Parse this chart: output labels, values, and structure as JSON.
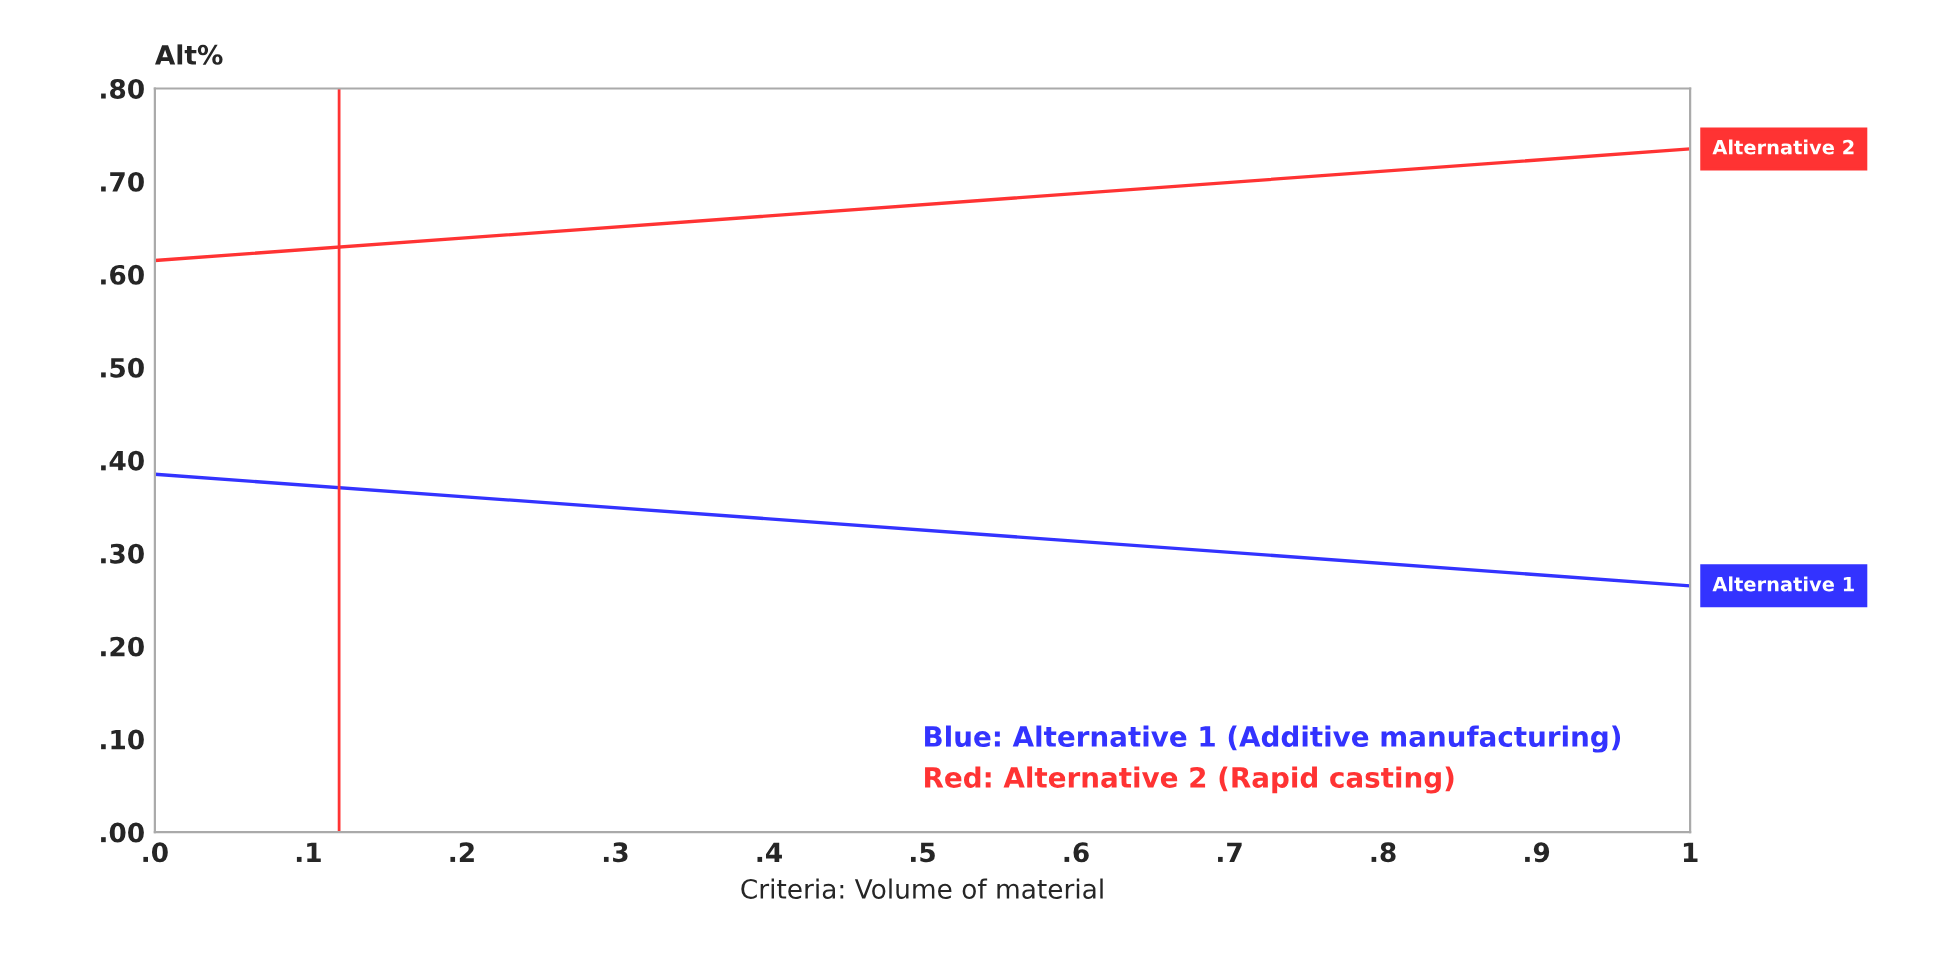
{
  "chart_data": {
    "type": "line",
    "xlabel": "Criteria: Volume of material",
    "ylabel": "Alt%",
    "x": [
      0,
      1
    ],
    "series": [
      {
        "name": "Alternative 1",
        "color": "#3333ff",
        "values": [
          0.385,
          0.265
        ]
      },
      {
        "name": "Alternative 2",
        "color": "#ff3333",
        "values": [
          0.615,
          0.735
        ]
      }
    ],
    "xlim": [
      0,
      1
    ],
    "xticks": [
      {
        "value": 0,
        "label": ".0"
      },
      {
        "value": 0.1,
        "label": ".1"
      },
      {
        "value": 0.2,
        "label": ".2"
      },
      {
        "value": 0.3,
        "label": ".3"
      },
      {
        "value": 0.4,
        "label": ".4"
      },
      {
        "value": 0.5,
        "label": ".5"
      },
      {
        "value": 0.6,
        "label": ".6"
      },
      {
        "value": 0.7,
        "label": ".7"
      },
      {
        "value": 0.8,
        "label": ".8"
      },
      {
        "value": 0.9,
        "label": ".9"
      },
      1
    ],
    "ylim": [
      0,
      0.8
    ],
    "yticks": [
      {
        "value": 0,
        "label": ".00"
      },
      {
        "value": 0.1,
        "label": ".10"
      },
      {
        "value": 0.2,
        "label": ".20"
      },
      {
        "value": 0.3,
        "label": ".30"
      },
      {
        "value": 0.4,
        "label": ".40"
      },
      {
        "value": 0.5,
        "label": ".50"
      },
      {
        "value": 0.6,
        "label": ".60"
      },
      {
        "value": 0.7,
        "label": ".70"
      },
      {
        "value": 0.8,
        "label": ".80"
      }
    ],
    "ref_lines": [
      {
        "axis": "x",
        "value": 0.12,
        "color": "#ff3333"
      }
    ],
    "annotations": [
      "Blue: Alternative 1 (Additive manufacturing)",
      "Red: Alternative 2 (Rapid casting)"
    ],
    "legend": false,
    "grid": false,
    "marker": "none",
    "line_style": "solid"
  }
}
